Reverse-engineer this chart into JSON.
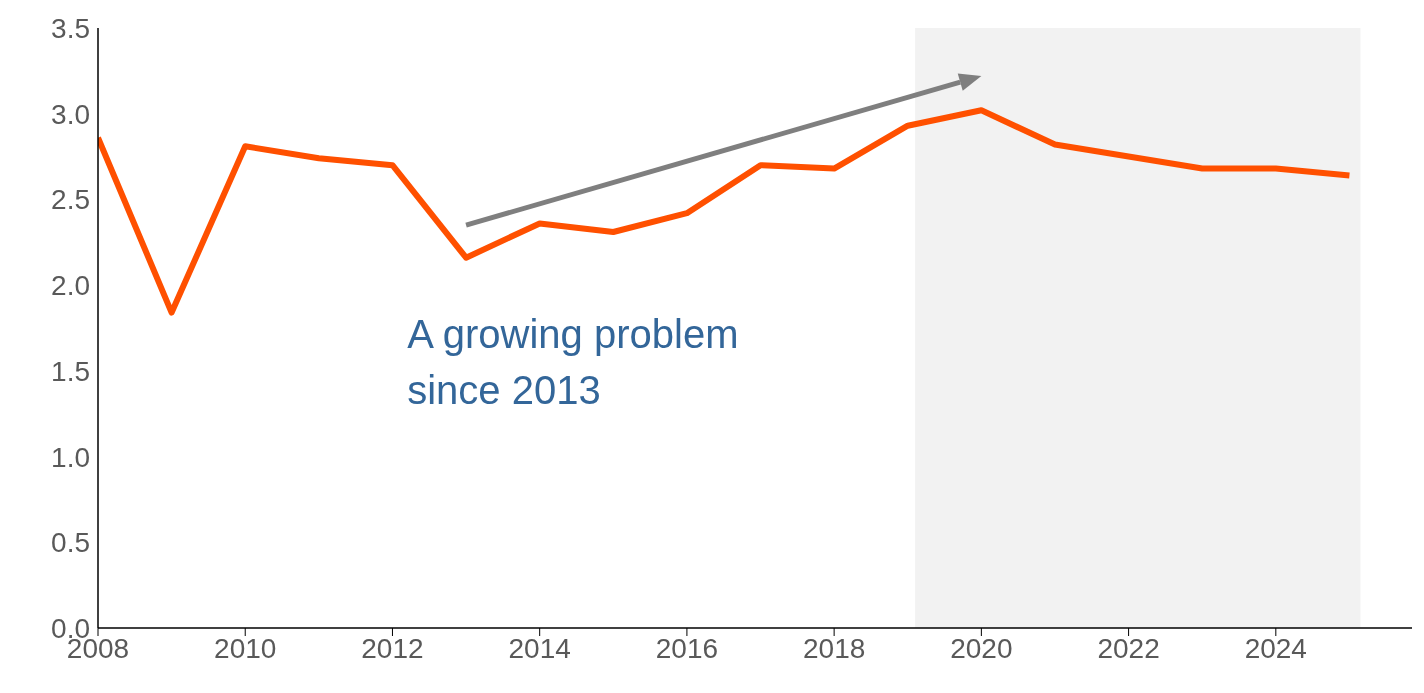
{
  "chart_data": {
    "type": "line",
    "x": [
      2008,
      2009,
      2010,
      2011,
      2012,
      2013,
      2014,
      2015,
      2016,
      2017,
      2018,
      2019,
      2020,
      2021,
      2022,
      2023,
      2024,
      2025
    ],
    "series": [
      {
        "color": "#ff5000",
        "values": [
          2.86,
          1.84,
          2.81,
          2.74,
          2.7,
          2.16,
          2.36,
          2.31,
          2.42,
          2.7,
          2.68,
          2.93,
          3.02,
          2.82,
          2.75,
          2.68,
          2.68,
          2.64
        ]
      }
    ],
    "xlim": [
      2008,
      2025.85
    ],
    "xticks": [
      2008,
      2010,
      2012,
      2014,
      2016,
      2018,
      2020,
      2022,
      2024
    ],
    "ylim": [
      0,
      3.5
    ],
    "yticks": [
      {
        "value": 0,
        "label": "0.0"
      },
      0.5,
      {
        "value": 1,
        "label": "1.0"
      },
      1.5,
      {
        "value": 2,
        "label": "2.0"
      },
      2.5,
      {
        "value": 3,
        "label": "3.0"
      },
      3.5
    ],
    "bands": [
      {
        "axis": "x",
        "from": 2019.1,
        "to": 2025.15,
        "color": "#f2f2f2"
      }
    ],
    "annotations": [
      "A growing problem since 2013"
    ],
    "grid": false,
    "legend": false,
    "marker": "none",
    "line_style": "solid"
  }
}
